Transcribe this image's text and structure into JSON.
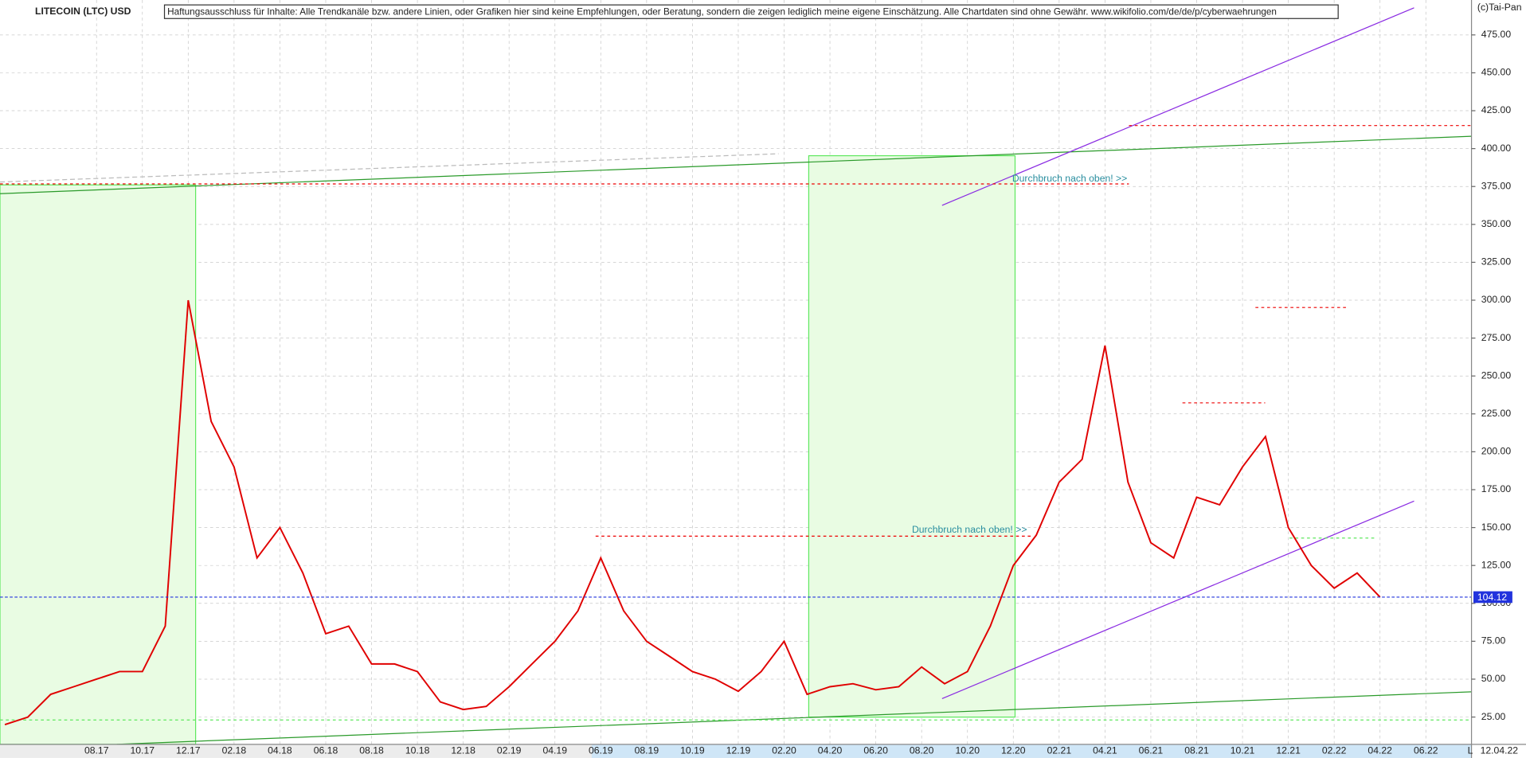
{
  "chart_data": {
    "type": "line",
    "title": "LITECOIN (LTC) USD",
    "disclaimer": "Haftungsausschluss für Inhalte: Alle Trendkanäle bzw. andere Linien, oder Grafiken hier sind keine Empfehlungen, oder Beratung, sondern die zeigen lediglich meine eigene Einschätzung. Alle Chartdaten sind ohne Gewähr.  www.wikifolio.com/de/de/p/cyberwaehrungen",
    "copyright": "(c)Tai-Pan",
    "annotations": [
      "Durchbruch nach oben! >>",
      "Durchbruch nach oben! >>"
    ],
    "last_date": "12.04.22",
    "scale_mode": "L",
    "categories": [
      null,
      null,
      null,
      null,
      "08.17",
      null,
      "10.17",
      null,
      "12.17",
      null,
      "02.18",
      null,
      "04.18",
      null,
      "06.18",
      null,
      "08.18",
      null,
      "10.18",
      null,
      "12.18",
      null,
      "02.19",
      null,
      "04.19",
      null,
      "06.19",
      null,
      "08.19",
      null,
      "10.19",
      null,
      "12.19",
      null,
      "02.20",
      null,
      "04.20",
      null,
      "06.20",
      null,
      "08.20",
      null,
      "10.20",
      null,
      "12.20",
      null,
      "02.21",
      null,
      "04.21",
      null,
      "06.21",
      null,
      "08.21",
      null,
      "10.21",
      null,
      "12.21",
      null,
      "02.22",
      null,
      "04.22",
      null,
      "06.22"
    ],
    "values": [
      20,
      25,
      40,
      45,
      50,
      55,
      55,
      85,
      300,
      220,
      190,
      130,
      150,
      120,
      80,
      85,
      60,
      60,
      55,
      35,
      30,
      32,
      45,
      60,
      75,
      95,
      130,
      95,
      75,
      65,
      55,
      50,
      42,
      55,
      75,
      40,
      45,
      47,
      43,
      45,
      58,
      47,
      55,
      85,
      125,
      145,
      180,
      195,
      270,
      180,
      140,
      130,
      170,
      165,
      190,
      210,
      150,
      125,
      110,
      120,
      104.12,
      null,
      null
    ],
    "color": "#e00000",
    "current_price": 104.12,
    "ylim": [
      7,
      498
    ],
    "yticks": [
      {
        "value": 25,
        "label": "25.00"
      },
      {
        "value": 50,
        "label": "50.00"
      },
      {
        "value": 75,
        "label": "75.00"
      },
      {
        "value": 100,
        "label": "100.00"
      },
      {
        "value": 125,
        "label": "125.00"
      },
      {
        "value": 150,
        "label": "150.00"
      },
      {
        "value": 175,
        "label": "175.00"
      },
      {
        "value": 200,
        "label": "200.00"
      },
      {
        "value": 225,
        "label": "225.00"
      },
      {
        "value": 250,
        "label": "250.00"
      },
      {
        "value": 275,
        "label": "275.00"
      },
      {
        "value": 300,
        "label": "300.00"
      },
      {
        "value": 325,
        "label": "325.00"
      },
      {
        "value": 350,
        "label": "350.00"
      },
      {
        "value": 375,
        "label": "375.00"
      },
      {
        "value": 400,
        "label": "400.00"
      },
      {
        "value": 425,
        "label": "425.00"
      },
      {
        "value": 450,
        "label": "450.00"
      },
      {
        "value": 475,
        "label": "475.00"
      }
    ],
    "grid": true
  }
}
